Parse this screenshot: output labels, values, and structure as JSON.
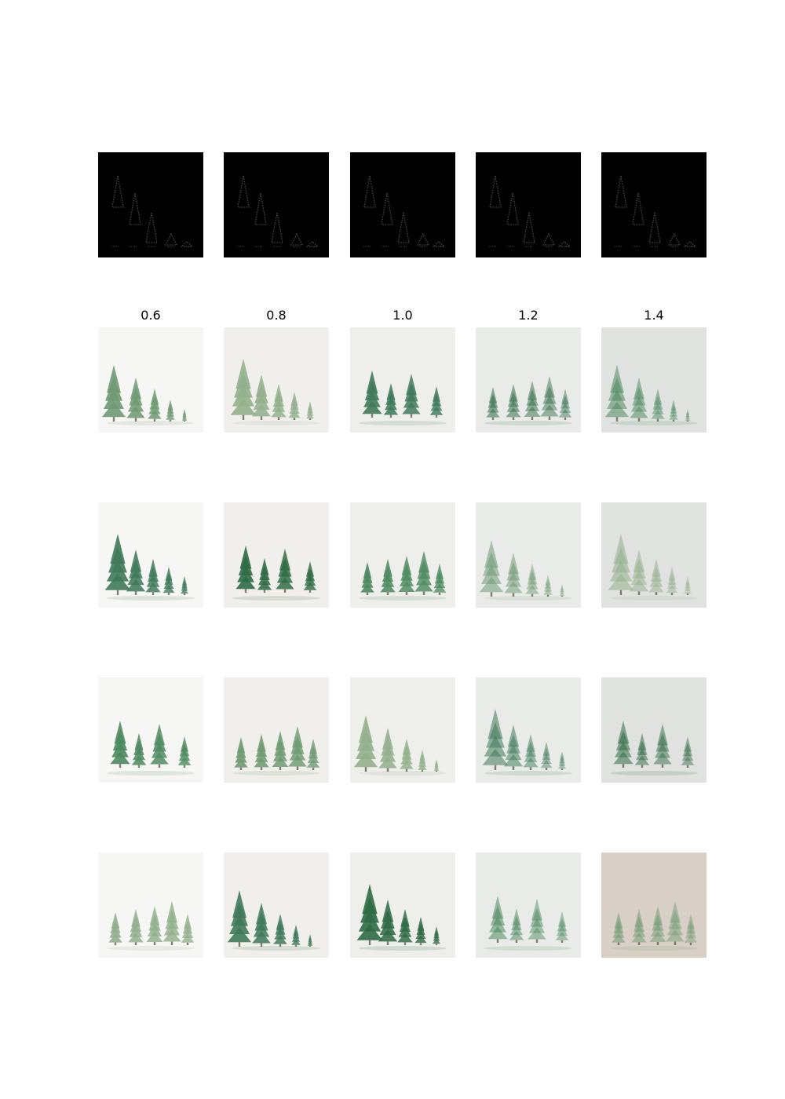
{
  "column_labels": [
    "0.6",
    "0.8",
    "1.0",
    "1.2",
    "1.4"
  ],
  "colors": {
    "background": "#ffffff",
    "mask_background": "#000000",
    "mask_trees": "#5a5a5a",
    "tree_greens": [
      "#2f6b45",
      "#4d8a5f",
      "#6f9a72",
      "#93b08c",
      "#3f7a5a"
    ]
  }
}
